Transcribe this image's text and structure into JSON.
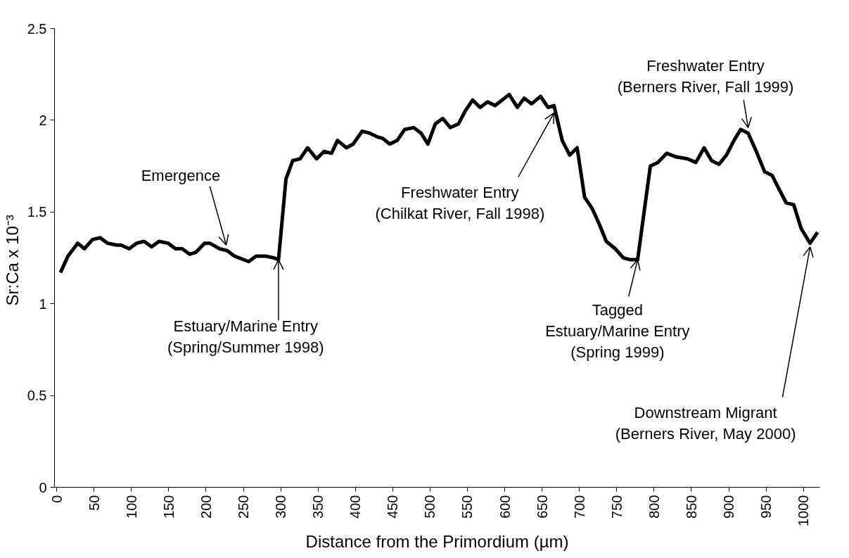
{
  "chart_data": {
    "type": "line",
    "xlabel": "Distance from the Primordium (µm)",
    "ylabel": "Sr:Ca  x 10⁻³",
    "x": [
      5,
      15,
      28,
      37,
      48,
      58,
      68,
      80,
      86,
      97,
      107,
      117,
      127,
      137,
      149,
      159,
      168,
      178,
      186,
      198,
      205,
      218,
      228,
      238,
      257,
      267,
      279,
      291,
      297,
      307,
      316,
      326,
      336,
      348,
      358,
      368,
      376,
      388,
      397,
      409,
      419,
      429,
      437,
      446,
      456,
      466,
      478,
      488,
      497,
      507,
      517,
      527,
      538,
      547,
      557,
      567,
      577,
      587,
      606,
      617,
      626,
      636,
      648,
      658,
      666,
      677,
      687,
      697,
      707,
      717,
      727,
      736,
      748,
      759,
      768,
      778,
      795,
      805,
      817,
      830,
      845,
      856,
      867,
      877,
      887,
      897,
      907,
      916,
      926,
      938,
      948,
      958,
      968,
      977,
      987,
      997,
      1009,
      1019
    ],
    "series": [
      {
        "color": "#000000",
        "values": [
          1.17,
          1.26,
          1.33,
          1.3,
          1.35,
          1.36,
          1.33,
          1.32,
          1.32,
          1.3,
          1.33,
          1.34,
          1.31,
          1.34,
          1.33,
          1.3,
          1.3,
          1.27,
          1.28,
          1.33,
          1.33,
          1.3,
          1.29,
          1.26,
          1.23,
          1.26,
          1.26,
          1.25,
          1.24,
          1.68,
          1.78,
          1.79,
          1.85,
          1.79,
          1.83,
          1.82,
          1.89,
          1.85,
          1.87,
          1.94,
          1.93,
          1.91,
          1.9,
          1.87,
          1.89,
          1.95,
          1.96,
          1.93,
          1.87,
          1.98,
          2.01,
          1.96,
          1.98,
          2.05,
          2.11,
          2.07,
          2.1,
          2.08,
          2.14,
          2.07,
          2.12,
          2.09,
          2.13,
          2.07,
          2.08,
          1.89,
          1.81,
          1.85,
          1.58,
          1.52,
          1.43,
          1.34,
          1.3,
          1.25,
          1.24,
          1.24,
          1.75,
          1.77,
          1.82,
          1.8,
          1.79,
          1.77,
          1.85,
          1.78,
          1.76,
          1.81,
          1.89,
          1.95,
          1.93,
          1.82,
          1.72,
          1.7,
          1.62,
          1.55,
          1.54,
          1.41,
          1.33,
          1.39
        ]
      }
    ],
    "xlim": [
      -3,
      1022
    ],
    "xticks": [
      0,
      50,
      100,
      150,
      200,
      250,
      300,
      350,
      400,
      450,
      500,
      550,
      600,
      650,
      700,
      750,
      800,
      850,
      900,
      950,
      1000
    ],
    "ylim": [
      0,
      2.5
    ],
    "yticks": [
      0,
      0.5,
      1,
      1.5,
      2,
      2.5
    ],
    "grid": false,
    "marker": "none",
    "line_style": "solid",
    "annotations": [
      {
        "text": "Emergence",
        "x": 227,
        "y": 1.32
      },
      {
        "text": "Estuary/Marine Entry\n(Spring/Summer 1998)",
        "x": 297,
        "y": 1.24
      },
      {
        "text": "Freshwater Entry\n(Chilkat River, Fall 1998)",
        "x": 666,
        "y": 2.04
      },
      {
        "text": "Tagged\nEstuary/Marine Entry\n(Spring 1999)",
        "x": 778,
        "y": 1.24
      },
      {
        "text": "Freshwater Entry\n(Berners River, Fall 1999)",
        "x": 926,
        "y": 1.96
      },
      {
        "text": "Downstream Migrant\n(Berners River, May 2000)",
        "x": 1009,
        "y": 1.31
      }
    ]
  }
}
